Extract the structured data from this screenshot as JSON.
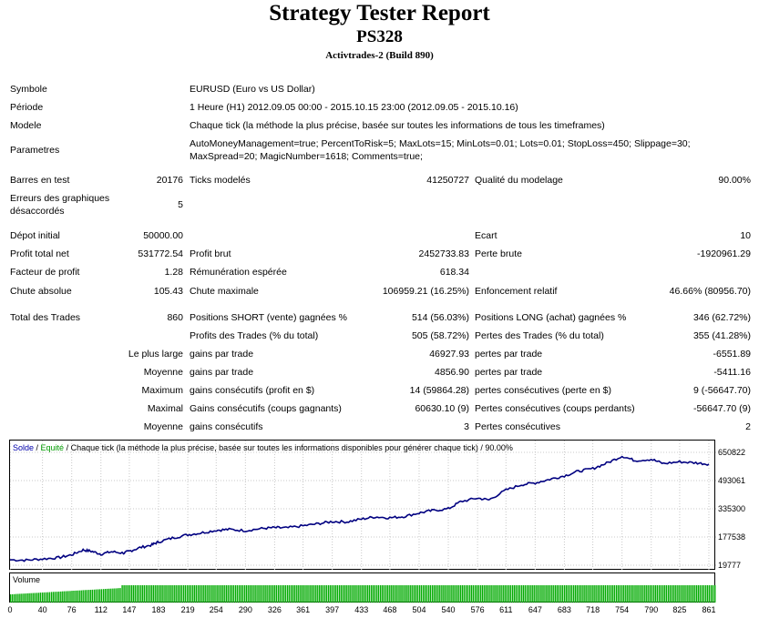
{
  "header": {
    "title": "Strategy Tester Report",
    "expert": "PS328",
    "build": "Activtrades-2 (Build 890)"
  },
  "info": {
    "symbole_label": "Symbole",
    "symbole_value": "EURUSD (Euro vs US Dollar)",
    "periode_label": "Période",
    "periode_value": "1 Heure (H1) 2012.09.05 00:00 - 2015.10.15 23:00 (2012.09.05 - 2015.10.16)",
    "modele_label": "Modele",
    "modele_value": "Chaque tick (la méthode la plus précise, basée sur toutes les informations de tous les timeframes)",
    "parametres_label": "Parametres",
    "parametres_value": "AutoMoneyManagement=true; PercentToRisk=5; MaxLots=15; MinLots=0.01; Lots=0.01; StopLoss=450; Slippage=30; MaxSpread=20; MagicNumber=1618; Comments=true;"
  },
  "test": {
    "barres_label": "Barres en test",
    "barres_value": "20176",
    "ticks_label": "Ticks modelés",
    "ticks_value": "41250727",
    "qualite_label": "Qualité du modelage",
    "qualite_value": "90.00%",
    "erreurs_label": "Erreurs des graphiques désaccordés",
    "erreurs_value": "5"
  },
  "results": {
    "depot_label": "Dépot initial",
    "depot_value": "50000.00",
    "ecart_label": "Ecart",
    "ecart_value": "10",
    "profit_total_label": "Profit total net",
    "profit_total_value": "531772.54",
    "profit_brut_label": "Profit brut",
    "profit_brut_value": "2452733.83",
    "perte_brute_label": "Perte brute",
    "perte_brute_value": "-1920961.29",
    "facteur_label": "Facteur de profit",
    "facteur_value": "1.28",
    "remuneration_label": "Rémunération espérée",
    "remuneration_value": "618.34",
    "chute_abs_label": "Chute absolue",
    "chute_abs_value": "105.43",
    "chute_max_label": "Chute maximale",
    "chute_max_value": "106959.21 (16.25%)",
    "enfoncement_label": "Enfoncement relatif",
    "enfoncement_value": "46.66% (80956.70)"
  },
  "trades": {
    "total_label": "Total des Trades",
    "total_value": "860",
    "short_label": "Positions SHORT (vente) gagnées %",
    "short_value": "514 (56.03%)",
    "long_label": "Positions LONG (achat) gagnées %",
    "long_value": "346 (62.72%)",
    "profits_trades_label": "Profits des Trades (% du total)",
    "profits_trades_value": "505 (58.72%)",
    "pertes_trades_label": "Pertes des Trades (% du total)",
    "pertes_trades_value": "355 (41.28%)",
    "large_label": "Le plus large",
    "large_gain_label": "gains par trade",
    "large_gain_value": "46927.93",
    "large_perte_label": "pertes par trade",
    "large_perte_value": "-6551.89",
    "moyenne_label": "Moyenne",
    "moyenne_gain_label": "gains par trade",
    "moyenne_gain_value": "4856.90",
    "moyenne_perte_label": "pertes par trade",
    "moyenne_perte_value": "-5411.16",
    "maximum_label": "Maximum",
    "maximum_gain_label": "gains consécutifs (profit en $)",
    "maximum_gain_value": "14 (59864.28)",
    "maximum_perte_label": "pertes consécutives (perte en $)",
    "maximum_perte_value": "9 (-56647.70)",
    "maximal_label": "Maximal",
    "maximal_gain_label": "Gains consécutifs (coups gagnants)",
    "maximal_gain_value": "60630.10 (9)",
    "maximal_perte_label": "Pertes consécutives (coups perdants)",
    "maximal_perte_value": "-56647.70 (9)",
    "moyenne2_label": "Moyenne",
    "moyenne2_gain_label": "gains consécutifs",
    "moyenne2_gain_value": "3",
    "moyenne2_perte_label": "Pertes consécutives",
    "moyenne2_perte_value": "2"
  },
  "chart_data": {
    "type": "line",
    "legend_solde": "Solde",
    "legend_sep1": " / ",
    "legend_equite": "Equité",
    "legend_rest": " / Chaque tick (la méthode la plus précise, basée sur toutes les informations disponibles pour générer chaque tick) / 90.00%",
    "volume_label": "Volume",
    "yticks": [
      "650822",
      "493061",
      "335300",
      "177538",
      "19777"
    ],
    "xticks": [
      "0",
      "40",
      "76",
      "112",
      "147",
      "183",
      "219",
      "254",
      "290",
      "326",
      "361",
      "397",
      "433",
      "468",
      "504",
      "540",
      "576",
      "611",
      "647",
      "683",
      "718",
      "754",
      "790",
      "825",
      "861"
    ],
    "ylim": [
      19777,
      650822
    ],
    "xlim": [
      0,
      870
    ],
    "colors": {
      "solde": "#000080",
      "volume": "#00aa00",
      "grid": "#c8c8c8"
    },
    "x": [
      0,
      20,
      40,
      60,
      76,
      90,
      100,
      112,
      125,
      140,
      147,
      160,
      175,
      183,
      200,
      219,
      235,
      254,
      270,
      290,
      310,
      326,
      340,
      361,
      380,
      397,
      415,
      433,
      450,
      468,
      485,
      504,
      520,
      540,
      555,
      576,
      590,
      611,
      630,
      647,
      665,
      683,
      700,
      718,
      735,
      754,
      770,
      790,
      805,
      825,
      845,
      861
    ],
    "values": [
      50000,
      48000,
      55000,
      62000,
      78000,
      105000,
      98000,
      82000,
      95000,
      88000,
      98000,
      118000,
      134000,
      150000,
      172000,
      190000,
      200000,
      215000,
      220000,
      213000,
      225000,
      230000,
      228000,
      240000,
      252000,
      264000,
      262000,
      278000,
      290000,
      285000,
      292000,
      312000,
      325000,
      335000,
      375000,
      395000,
      385000,
      440000,
      470000,
      480000,
      500000,
      520000,
      545000,
      560000,
      590000,
      630000,
      605000,
      612000,
      588000,
      598000,
      592000,
      585000
    ]
  }
}
